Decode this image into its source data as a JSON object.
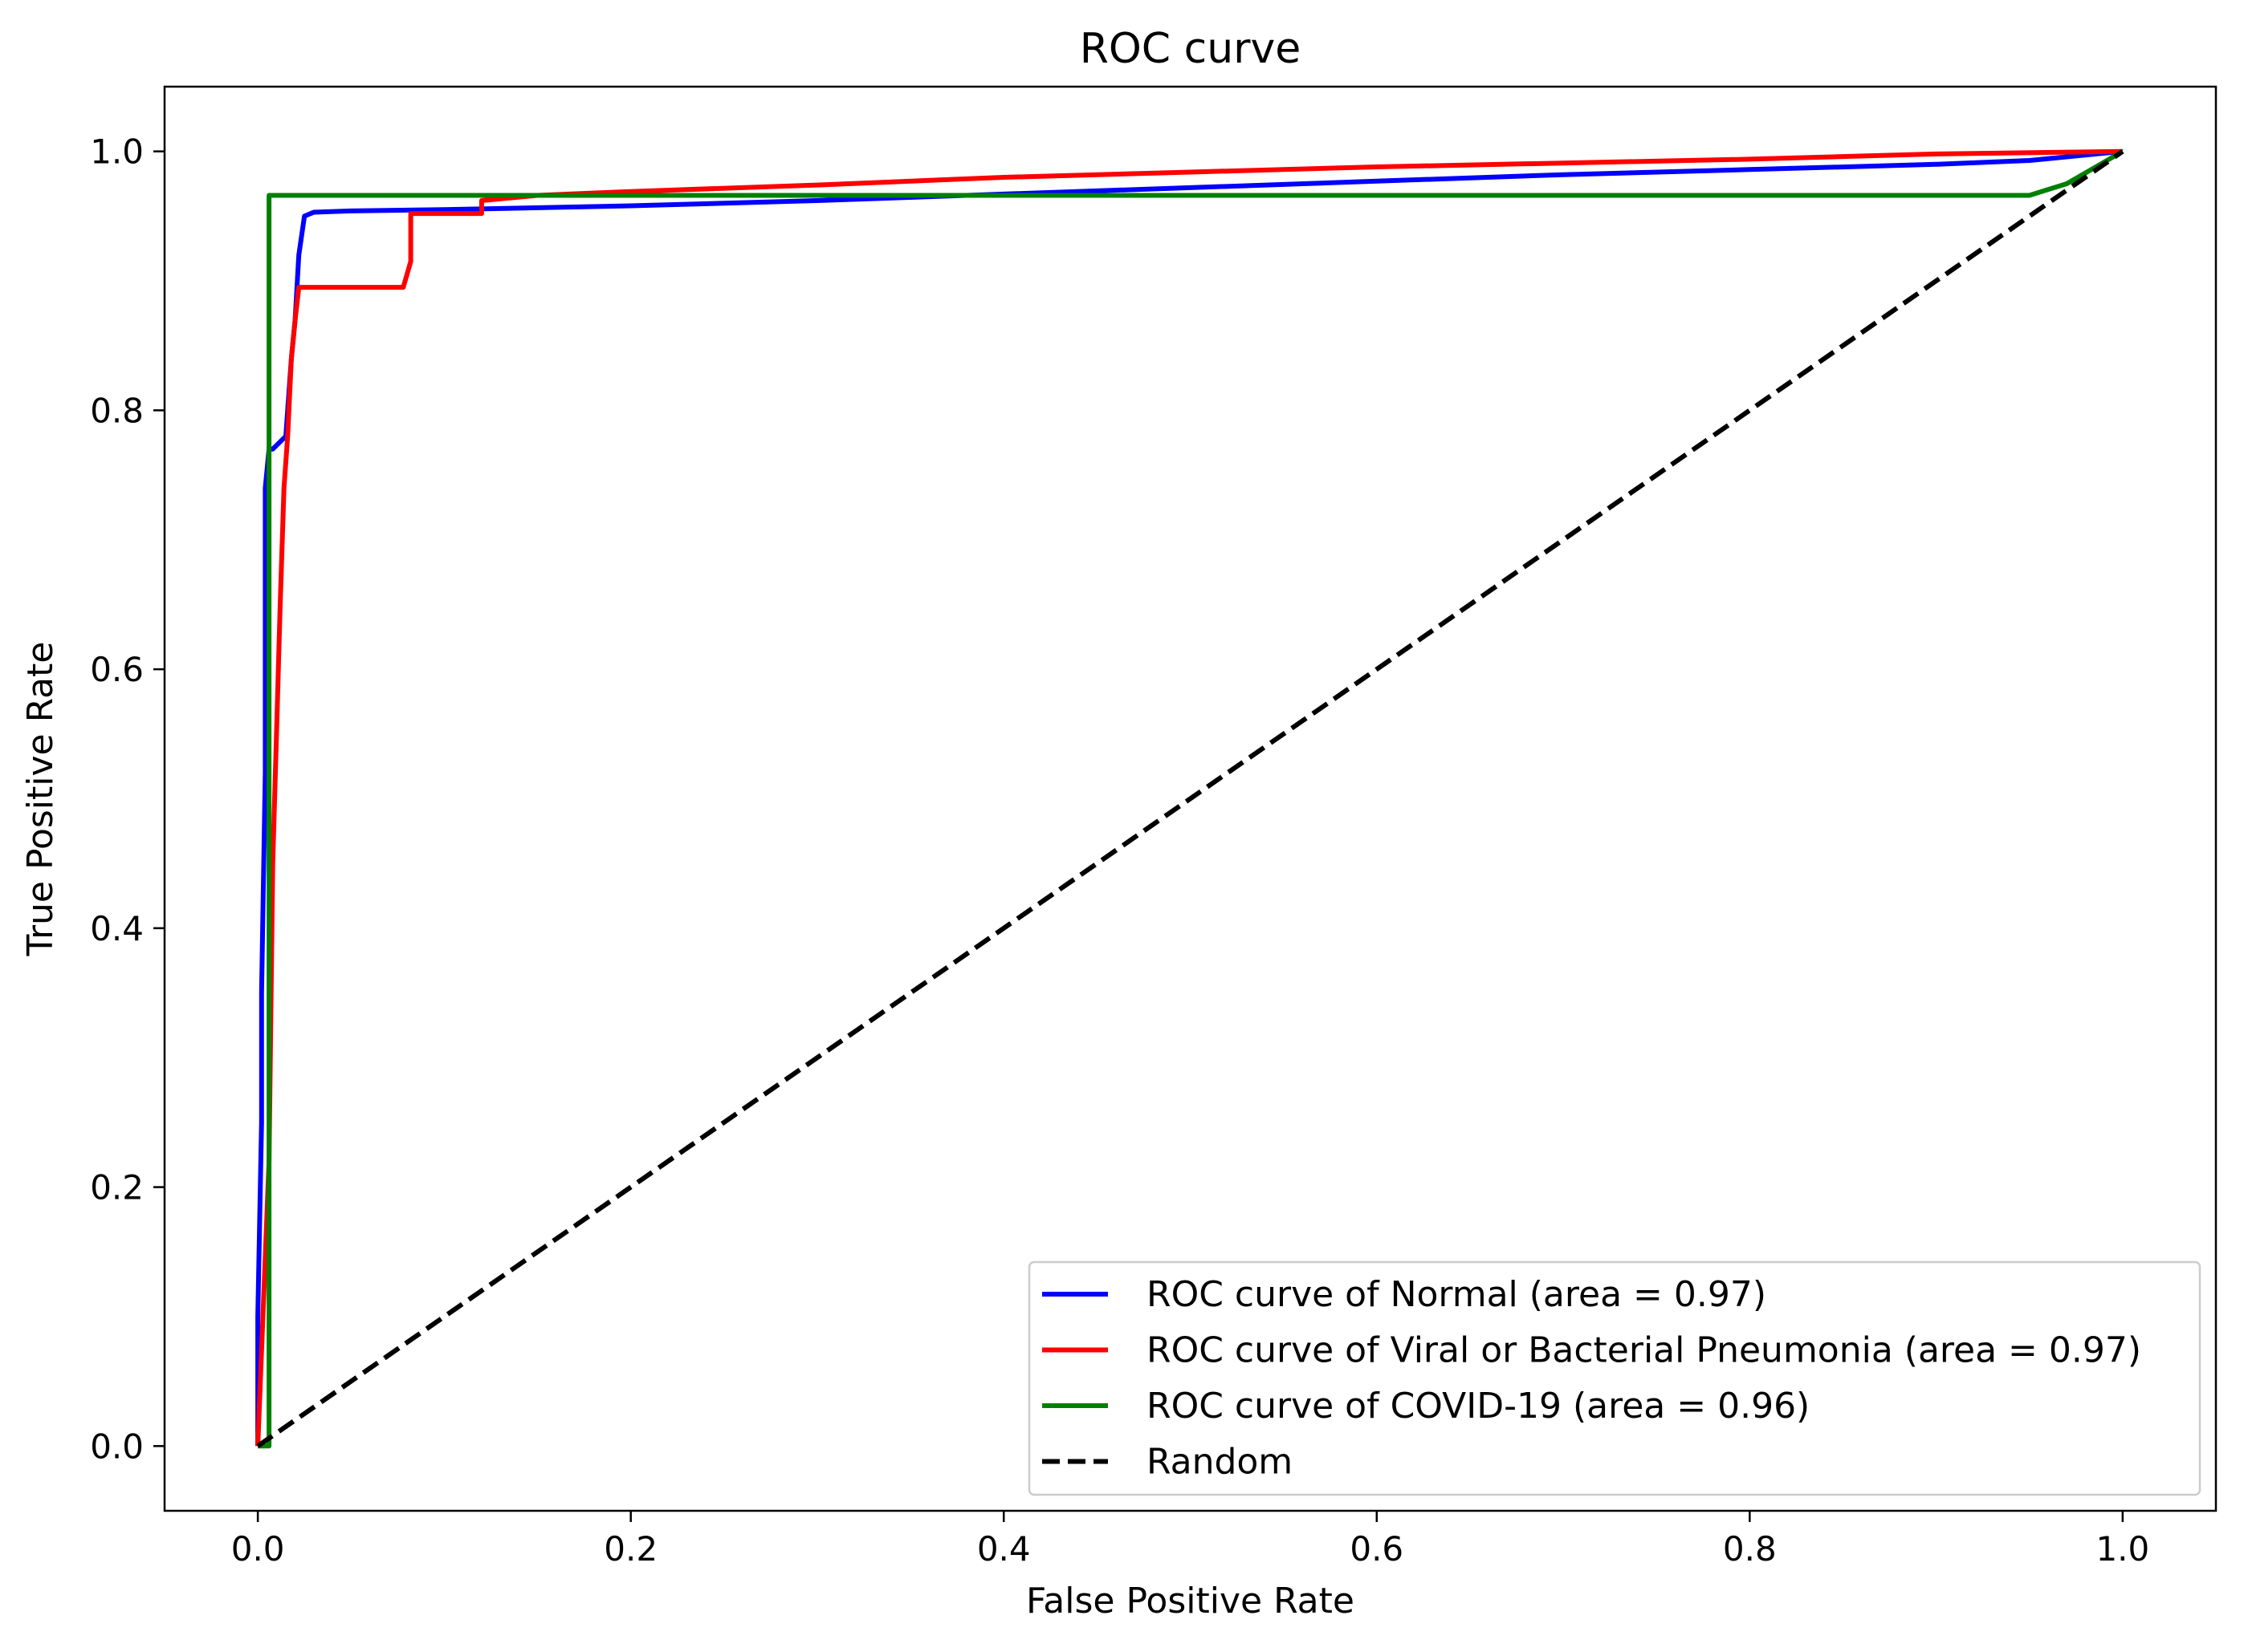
{
  "chart_data": {
    "type": "line",
    "title": "ROC curve",
    "xlabel": "False Positive Rate",
    "ylabel": "True Positive Rate",
    "xlim": [
      -0.05,
      1.05
    ],
    "ylim": [
      -0.05,
      1.05
    ],
    "xticks": [
      0.0,
      0.2,
      0.4,
      0.6,
      0.8,
      1.0
    ],
    "xtick_labels": [
      "0.0",
      "0.2",
      "0.4",
      "0.6",
      "0.8",
      "1.0"
    ],
    "yticks": [
      0.0,
      0.2,
      0.4,
      0.6,
      0.8,
      1.0
    ],
    "ytick_labels": [
      "0.0",
      "0.2",
      "0.4",
      "0.6",
      "0.8",
      "1.0"
    ],
    "grid": false,
    "legend_position": "lower-right",
    "series": [
      {
        "name": "ROC curve of Normal (area = 0.97)",
        "color": "#0000ff",
        "dash": "solid",
        "x": [
          0.0,
          0.0,
          0.002,
          0.002,
          0.004,
          0.004,
          0.006,
          0.008,
          0.015,
          0.018,
          0.02,
          0.022,
          0.025,
          0.03,
          0.05,
          0.1,
          0.2,
          0.3,
          0.4,
          0.5,
          0.6,
          0.7,
          0.8,
          0.9,
          0.95,
          1.0
        ],
        "y": [
          0.0,
          0.1,
          0.25,
          0.35,
          0.52,
          0.74,
          0.77,
          0.77,
          0.78,
          0.84,
          0.87,
          0.92,
          0.95,
          0.953,
          0.954,
          0.955,
          0.958,
          0.962,
          0.967,
          0.972,
          0.977,
          0.982,
          0.986,
          0.99,
          0.993,
          1.0
        ]
      },
      {
        "name": "ROC curve of Viral or Bacterial Pneumonia (area = 0.97)",
        "color": "#ff0000",
        "dash": "solid",
        "x": [
          0.0,
          0.006,
          0.008,
          0.01,
          0.012,
          0.014,
          0.016,
          0.018,
          0.02,
          0.022,
          0.078,
          0.082,
          0.082,
          0.12,
          0.12,
          0.15,
          0.2,
          0.3,
          0.4,
          0.5,
          0.6,
          0.7,
          0.8,
          0.9,
          1.0
        ],
        "y": [
          0.0,
          0.22,
          0.45,
          0.55,
          0.65,
          0.74,
          0.78,
          0.84,
          0.87,
          0.895,
          0.895,
          0.915,
          0.952,
          0.952,
          0.962,
          0.966,
          0.969,
          0.974,
          0.98,
          0.984,
          0.988,
          0.991,
          0.994,
          0.998,
          1.0
        ]
      },
      {
        "name": "ROC curve of COVID-19 (area = 0.96)",
        "color": "#008000",
        "dash": "solid",
        "x": [
          0.0,
          0.006,
          0.006,
          0.3,
          0.6,
          0.95,
          0.97,
          1.0
        ],
        "y": [
          0.0,
          0.0,
          0.966,
          0.966,
          0.966,
          0.966,
          0.975,
          1.0
        ]
      },
      {
        "name": "Random",
        "color": "#000000",
        "dash": "dashed",
        "x": [
          0.0,
          1.0
        ],
        "y": [
          0.0,
          1.0
        ]
      }
    ]
  }
}
